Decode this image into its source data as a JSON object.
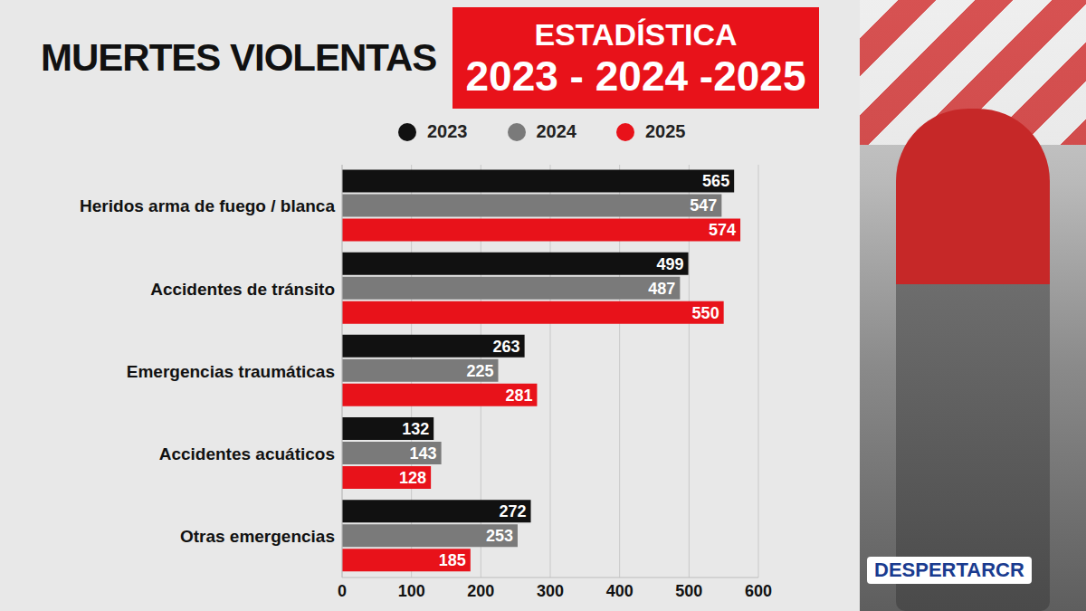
{
  "chart_data": {
    "type": "bar",
    "orientation": "horizontal",
    "title": "MUERTES VIOLENTAS",
    "subtitle": "ESTADÍSTICA 2023 - 2024 -2025",
    "annotations": [
      "DESPERTARCR"
    ],
    "categories": [
      "Heridos arma de fuego / blanca",
      "Accidentes de tránsito",
      "Emergencias traumáticas",
      "Accidentes acuáticos",
      "Otras emergencias"
    ],
    "series": [
      {
        "name": "2023",
        "color": "#111111",
        "values": [
          565,
          499,
          263,
          132,
          272
        ]
      },
      {
        "name": "2024",
        "color": "#7a7a7a",
        "values": [
          547,
          487,
          225,
          143,
          253
        ]
      },
      {
        "name": "2025",
        "color": "#e8121a",
        "values": [
          574,
          550,
          281,
          128,
          185
        ]
      }
    ],
    "xlim": [
      0,
      600
    ],
    "xticks": [
      0,
      100,
      200,
      300,
      400,
      500,
      600
    ],
    "grid": true,
    "legend": "top",
    "data_labels": true
  }
}
